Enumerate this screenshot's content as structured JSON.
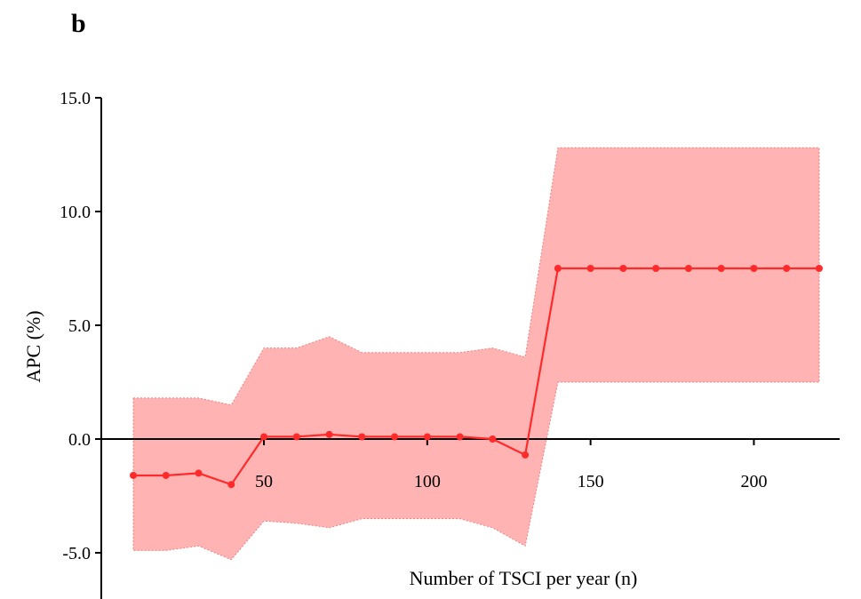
{
  "panel_label": "b",
  "chart_data": {
    "type": "line",
    "title": "",
    "xlabel": "Number of TSCI per year (n)",
    "ylabel": "APC (%)",
    "xlim": [
      10,
      220
    ],
    "ylim": [
      -7,
      15
    ],
    "x_ticks": [
      50,
      100,
      150,
      200
    ],
    "x_tick_labels": [
      "50",
      "100",
      "150",
      "200"
    ],
    "y_ticks": [
      -5,
      0,
      5,
      10,
      15
    ],
    "y_tick_labels": [
      "-5.0",
      "0.0",
      "5.0",
      "10.0",
      "15.0"
    ],
    "grid": false,
    "legend": "none",
    "series": [
      {
        "color": "#ff2a2a",
        "band_color": "#ffb3b3",
        "x": [
          10,
          20,
          30,
          40,
          50,
          60,
          70,
          80,
          90,
          100,
          110,
          120,
          130,
          140,
          150,
          160,
          170,
          180,
          190,
          200,
          210,
          220
        ],
        "y": [
          -1.6,
          -1.6,
          -1.5,
          -2.0,
          0.1,
          0.1,
          0.2,
          0.1,
          0.1,
          0.1,
          0.1,
          0.0,
          -0.7,
          7.5,
          7.5,
          7.5,
          7.5,
          7.5,
          7.5,
          7.5,
          7.5,
          7.5
        ],
        "lower": [
          -4.9,
          -4.9,
          -4.7,
          -5.3,
          -3.6,
          -3.7,
          -3.9,
          -3.5,
          -3.5,
          -3.5,
          -3.5,
          -3.9,
          -4.7,
          2.5,
          2.5,
          2.5,
          2.5,
          2.5,
          2.5,
          2.5,
          2.5,
          2.5
        ],
        "upper": [
          1.8,
          1.8,
          1.8,
          1.5,
          4.0,
          4.0,
          4.5,
          3.8,
          3.8,
          3.8,
          3.8,
          4.0,
          3.6,
          12.8,
          12.8,
          12.8,
          12.8,
          12.8,
          12.8,
          12.8,
          12.8,
          12.8
        ]
      }
    ]
  }
}
